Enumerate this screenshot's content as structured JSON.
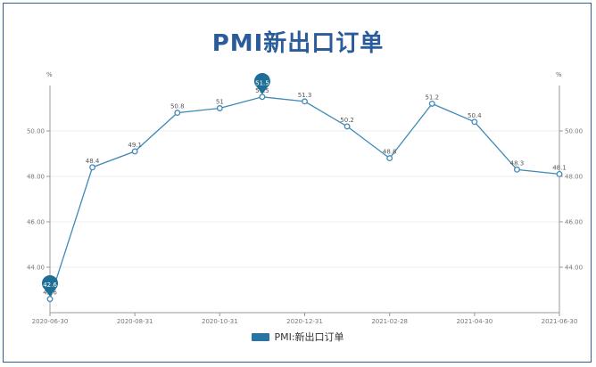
{
  "chart_data": {
    "type": "line",
    "title": "PMI新出口订单",
    "x": [
      "2020-06-30",
      "2020-07-31",
      "2020-08-31",
      "2020-09-30",
      "2020-10-31",
      "2020-11-30",
      "2020-12-31",
      "2021-01-31",
      "2021-02-28",
      "2021-03-31",
      "2021-04-30",
      "2021-05-31",
      "2021-06-30"
    ],
    "x_tick_labels": [
      "2020-06-30",
      "2020-08-31",
      "2020-10-31",
      "2020-12-31",
      "2021-02-28",
      "2021-04-30",
      "2021-06-30"
    ],
    "series": [
      {
        "name": "PMI:新出口订单",
        "values": [
          42.6,
          48.4,
          49.1,
          50.8,
          51,
          51.5,
          51.3,
          50.2,
          48.8,
          51.2,
          50.4,
          48.3,
          48.1
        ],
        "color": "#2873a4"
      }
    ],
    "ylim": [
      42,
      52
    ],
    "y_ticks": [
      "44.00",
      "46.00",
      "48.00",
      "50.00"
    ],
    "y_tick_values": [
      44,
      46,
      48,
      50
    ],
    "ylabel_left": "%",
    "ylabel_right": "%",
    "markers": {
      "max": "51.5",
      "min": "42.6"
    },
    "legend_position": "bottom",
    "grid": true
  }
}
